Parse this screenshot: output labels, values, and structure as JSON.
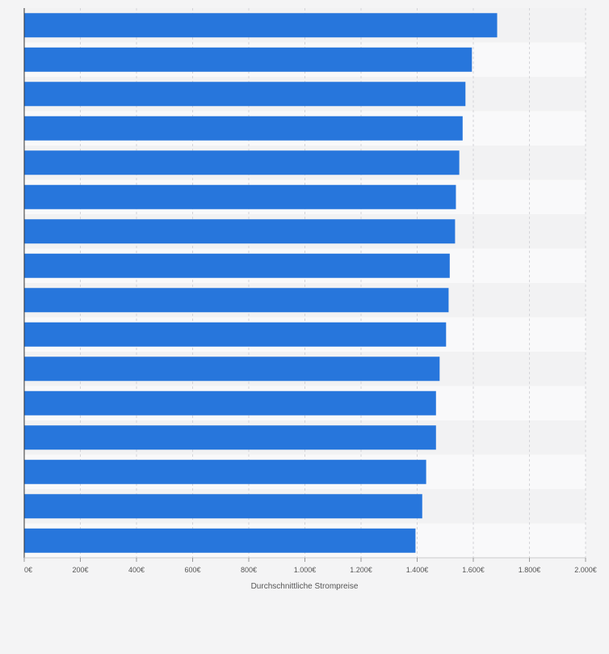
{
  "chart_data": {
    "type": "bar",
    "orientation": "horizontal",
    "categories": [
      "",
      "",
      "",
      "",
      "",
      "",
      "",
      "",
      "",
      "",
      "",
      "",
      "",
      "",
      "",
      ""
    ],
    "values": [
      1685,
      1595,
      1572,
      1562,
      1550,
      1538,
      1535,
      1516,
      1512,
      1503,
      1480,
      1467,
      1467,
      1432,
      1418,
      1394
    ],
    "xlabel": "Durchschnittliche Strompreise",
    "ylabel": "",
    "xlim": [
      0,
      2000
    ],
    "xticks": [
      0,
      200,
      400,
      600,
      800,
      1000,
      1200,
      1400,
      1600,
      1800,
      2000
    ],
    "xtick_labels": [
      "0€",
      "200€",
      "400€",
      "600€",
      "800€",
      "1.000€",
      "1.200€",
      "1.400€",
      "1.600€",
      "1.800€",
      "2.000€"
    ],
    "grid": true,
    "bar_color": "#2776dc",
    "band_colors": [
      "#f2f2f3",
      "#f9f9fa"
    ]
  }
}
